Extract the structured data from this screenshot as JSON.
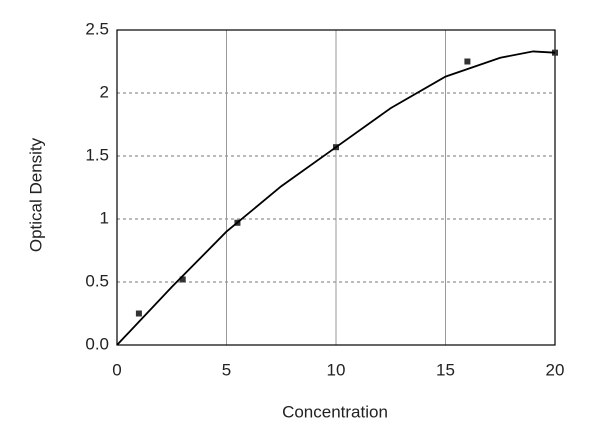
{
  "chart_data": {
    "type": "scatter",
    "xlabel": "Concentration",
    "ylabel": "Optical Density",
    "xlim": [
      0,
      20
    ],
    "xticks": [
      0,
      5,
      10,
      15,
      20
    ],
    "ylim": [
      0,
      2.5
    ],
    "yticks": [
      {
        "value": 0,
        "label": "0.0"
      },
      0.5,
      1,
      1.5,
      2,
      2.5
    ],
    "grid": true,
    "series": [
      {
        "mode": "markers",
        "color": "#333333",
        "x": [
          1,
          3,
          5.5,
          10,
          16,
          20
        ],
        "values": [
          0.25,
          0.52,
          0.97,
          1.57,
          2.25,
          2.32
        ]
      },
      {
        "mode": "line",
        "color": "#000000",
        "x": [
          0,
          2.5,
          5,
          7.5,
          10,
          12.5,
          15,
          17.5,
          19,
          20
        ],
        "values": [
          0,
          0.46,
          0.9,
          1.26,
          1.57,
          1.88,
          2.13,
          2.28,
          2.33,
          2.32
        ]
      }
    ]
  }
}
